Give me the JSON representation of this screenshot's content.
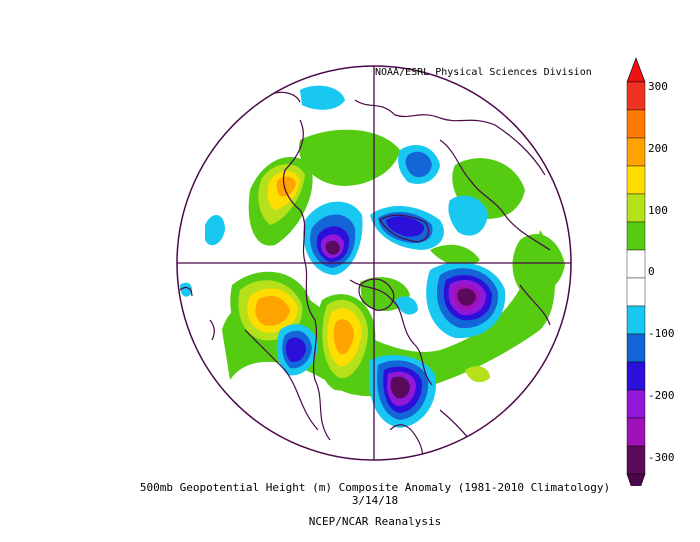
{
  "credit": "NOAA/ESRL Physical Sciences Division",
  "title": "500mb Geopotential Height (m) Composite Anomaly (1981-2010 Climatology)",
  "date": "3/14/18",
  "source": "NCEP/NCAR Reanalysis",
  "colorbar": {
    "labels": [
      "300",
      "200",
      "100",
      "0",
      "-100",
      "-200",
      "-300"
    ],
    "colors": [
      "#ee3322",
      "#ff7a00",
      "#ffa300",
      "#ffdd00",
      "#b6e01a",
      "#55cc11",
      "#ffffff",
      "#ffffff",
      "#19c8f0",
      "#1466d8",
      "#2a10d8",
      "#9218d8",
      "#a012b8",
      "#5a0a5a"
    ],
    "top_arrow_color": "#ee1111",
    "bottom_arrow_color": "#4a0848"
  }
}
